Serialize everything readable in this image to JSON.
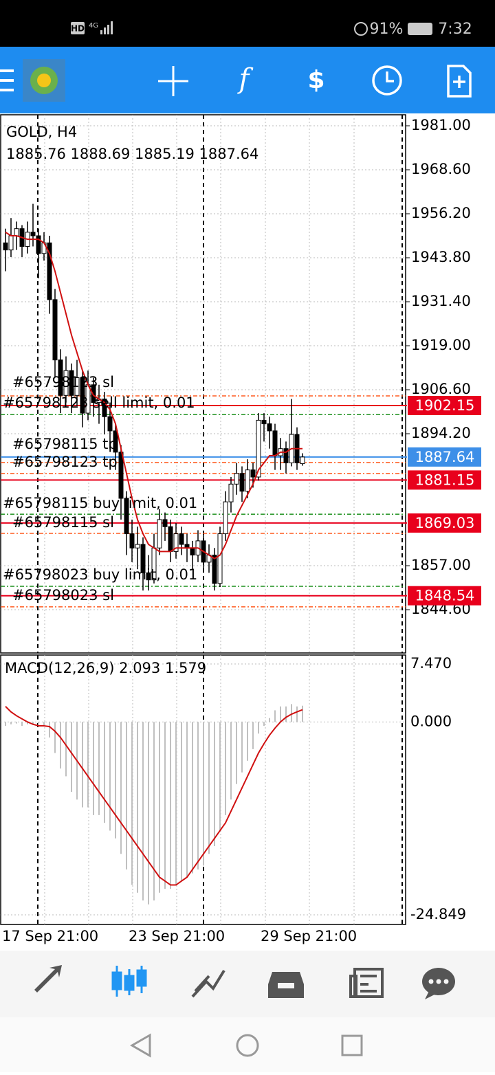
{
  "status_bar": {
    "network": "HD",
    "signal": "4G",
    "battery": "91%",
    "time": "7:32"
  },
  "chart": {
    "symbol": "GOLD, H4",
    "ohlc": "1885.76 1888.69 1885.19 1887.64",
    "ylim": [
      1832.4,
      1984.1
    ],
    "yticks": [
      {
        "value": 1981,
        "label": "1981.00"
      },
      {
        "value": 1968.6,
        "label": "1968.60"
      },
      {
        "value": 1956.2,
        "label": "1956.20"
      },
      {
        "value": 1943.8,
        "label": "1943.80"
      },
      {
        "value": 1931.4,
        "label": "1931.40"
      },
      {
        "value": 1919,
        "label": "1919.00"
      },
      {
        "value": 1906.6,
        "label": "1906.60"
      },
      {
        "value": 1894.2,
        "label": "1894.20"
      },
      {
        "value": 1857,
        "label": "1857.00"
      },
      {
        "value": 1844.6,
        "label": "1844.60"
      }
    ],
    "categories": [
      "17 Sep 21:00",
      null,
      null,
      null,
      null,
      null,
      null,
      null,
      null,
      null,
      null,
      null,
      null,
      null,
      null,
      null,
      null,
      null,
      null,
      null,
      null,
      null,
      null,
      "23 Sep 21:00",
      null,
      null,
      null,
      null,
      null,
      null,
      null,
      null,
      null,
      null,
      null,
      null,
      null,
      null,
      null,
      null,
      null,
      null,
      null,
      null,
      null,
      null,
      null,
      "29 Sep 21:00",
      null,
      null,
      null,
      null,
      null,
      null,
      null
    ],
    "candles": [
      [
        1948,
        1952,
        1940,
        1946
      ],
      [
        1946,
        1955,
        1944,
        1950
      ],
      [
        1950,
        1954,
        1946,
        1952
      ],
      [
        1952,
        1953,
        1944,
        1947
      ],
      [
        1947,
        1954,
        1945,
        1951
      ],
      [
        1951,
        1959,
        1947,
        1950
      ],
      [
        1950,
        1952,
        1938,
        1945
      ],
      [
        1945,
        1951,
        1943,
        1948
      ],
      [
        1948,
        1950,
        1928,
        1932
      ],
      [
        1932,
        1935,
        1910,
        1915
      ],
      [
        1915,
        1918,
        1900,
        1905
      ],
      [
        1905,
        1916,
        1903,
        1912
      ],
      [
        1912,
        1914,
        1900,
        1905
      ],
      [
        1905,
        1915,
        1902,
        1910
      ],
      [
        1910,
        1912,
        1896,
        1900
      ],
      [
        1900,
        1912,
        1898,
        1908
      ],
      [
        1908,
        1910,
        1899,
        1903
      ],
      [
        1903,
        1908,
        1897,
        1904
      ],
      [
        1904,
        1906,
        1894,
        1899
      ],
      [
        1899,
        1903,
        1890,
        1895
      ],
      [
        1895,
        1897,
        1884,
        1889
      ],
      [
        1889,
        1891,
        1870,
        1876
      ],
      [
        1876,
        1878,
        1860,
        1866
      ],
      [
        1866,
        1870,
        1858,
        1862
      ],
      [
        1862,
        1868,
        1856,
        1863
      ],
      [
        1863,
        1865,
        1850,
        1855
      ],
      [
        1855,
        1860,
        1850,
        1853
      ],
      [
        1853,
        1866,
        1852,
        1862
      ],
      [
        1862,
        1873,
        1860,
        1870
      ],
      [
        1870,
        1872,
        1864,
        1868
      ],
      [
        1868,
        1870,
        1858,
        1861
      ],
      [
        1861,
        1869,
        1859,
        1866
      ],
      [
        1866,
        1868,
        1860,
        1863
      ],
      [
        1863,
        1866,
        1858,
        1862
      ],
      [
        1862,
        1864,
        1856,
        1860
      ],
      [
        1860,
        1867,
        1858,
        1864
      ],
      [
        1864,
        1866,
        1855,
        1858
      ],
      [
        1858,
        1863,
        1855,
        1860
      ],
      [
        1860,
        1862,
        1850,
        1852
      ],
      [
        1852,
        1868,
        1851,
        1866
      ],
      [
        1866,
        1878,
        1864,
        1875
      ],
      [
        1875,
        1882,
        1872,
        1880
      ],
      [
        1880,
        1886,
        1877,
        1883
      ],
      [
        1883,
        1885,
        1875,
        1878
      ],
      [
        1878,
        1887,
        1876,
        1884
      ],
      [
        1884,
        1886,
        1879,
        1882
      ],
      [
        1882,
        1900,
        1881,
        1898
      ],
      [
        1898,
        1900,
        1892,
        1897
      ],
      [
        1897,
        1899,
        1890,
        1895
      ],
      [
        1895,
        1897,
        1884,
        1888
      ],
      [
        1888,
        1893,
        1884,
        1890
      ],
      [
        1890,
        1892,
        1883,
        1886
      ],
      [
        1886,
        1904,
        1885,
        1894
      ],
      [
        1894,
        1896,
        1884,
        1886
      ],
      [
        1885.76,
        1888.69,
        1885.19,
        1887.64
      ]
    ],
    "ma": [
      1951,
      1950,
      1950,
      1949.5,
      1949,
      1949,
      1949,
      1948,
      1945,
      1940,
      1934,
      1928,
      1922,
      1917,
      1912,
      1908,
      1905,
      1904,
      1903,
      1901,
      1897,
      1890,
      1883,
      1876,
      1870,
      1866,
      1863,
      1862,
      1861,
      1861,
      1861,
      1862,
      1862,
      1862,
      1862,
      1862,
      1861,
      1860,
      1859,
      1860,
      1863,
      1867,
      1871,
      1874,
      1877,
      1880,
      1884,
      1886,
      1888,
      1888,
      1889,
      1889,
      1890,
      1890,
      1890
    ],
    "price_lines": [
      {
        "value": 1902.15,
        "label": "1902.15",
        "color": "#e8001c"
      },
      {
        "value": 1887.64,
        "label": "1887.64",
        "color": "#3d8fe8"
      },
      {
        "value": 1881.15,
        "label": "1881.15",
        "color": "#e8001c"
      },
      {
        "value": 1869.03,
        "label": "1869.03",
        "color": "#e8001c"
      },
      {
        "value": 1848.54,
        "label": "1848.54",
        "color": "#e8001c"
      }
    ],
    "level_lines": [
      {
        "value": 1904.85,
        "color": "#ff5a1f"
      },
      {
        "value": 1899.6,
        "color": "#1a8f1a"
      },
      {
        "value": 1886.1,
        "color": "#ff5a1f"
      },
      {
        "value": 1883,
        "color": "#ff5a1f"
      },
      {
        "value": 1871.5,
        "color": "#1a8f1a"
      },
      {
        "value": 1866.1,
        "color": "#ff5a1f"
      },
      {
        "value": 1851.2,
        "color": "#1a8f1a"
      },
      {
        "value": 1845.4,
        "color": "#ff5a1f"
      }
    ],
    "orders": [
      "#65798123 sl",
      "#65798123 sell limit, 0.01",
      "#65798115 tp",
      "#65798123 tp",
      "#65798115 buy limit, 0.01",
      "#65798115 sl",
      "#65798023 buy limit, 0.01",
      "#65798023 sl"
    ]
  },
  "macd": {
    "title": "MACD(12,26,9) 2.093 1.579",
    "ylim": [
      -26.09,
      8.62
    ],
    "yticks": [
      {
        "value": 7.47,
        "label": "7.470"
      },
      {
        "value": 0,
        "label": "0.000"
      },
      {
        "value": -24.849,
        "label": "-24.849"
      }
    ],
    "histogram": [
      -0.5,
      -0.3,
      -0.2,
      -0.5,
      -0.3,
      -0.4,
      -0.6,
      -0.5,
      -2,
      -4,
      -6,
      -7,
      -9,
      -10,
      -11,
      -11,
      -12,
      -12,
      -13,
      -14,
      -15,
      -17,
      -19,
      -21,
      -22,
      -23,
      -23.5,
      -23,
      -22,
      -21.5,
      -21.5,
      -21,
      -20.5,
      -20,
      -19.5,
      -19,
      -18.5,
      -17,
      -16,
      -14,
      -12,
      -10,
      -8,
      -6.5,
      -5,
      -3.5,
      -1.5,
      -0.5,
      0.5,
      1.5,
      2,
      2,
      2.3,
      2,
      2.093
    ],
    "signal": [
      2,
      1.3,
      0.8,
      0.4,
      0,
      -0.3,
      -0.5,
      -0.5,
      -0.6,
      -1.2,
      -2,
      -3,
      -4,
      -5,
      -6,
      -7,
      -8,
      -9,
      -10,
      -11,
      -12,
      -13,
      -14,
      -15,
      -16,
      -17,
      -18,
      -19,
      -20,
      -20.5,
      -21,
      -21,
      -20.5,
      -20,
      -19,
      -18,
      -17,
      -16,
      -15,
      -14,
      -13,
      -11.5,
      -10,
      -8.5,
      -7,
      -5.5,
      -4,
      -2.8,
      -1.7,
      -0.8,
      0,
      0.6,
      1,
      1.3,
      1.579
    ]
  }
}
